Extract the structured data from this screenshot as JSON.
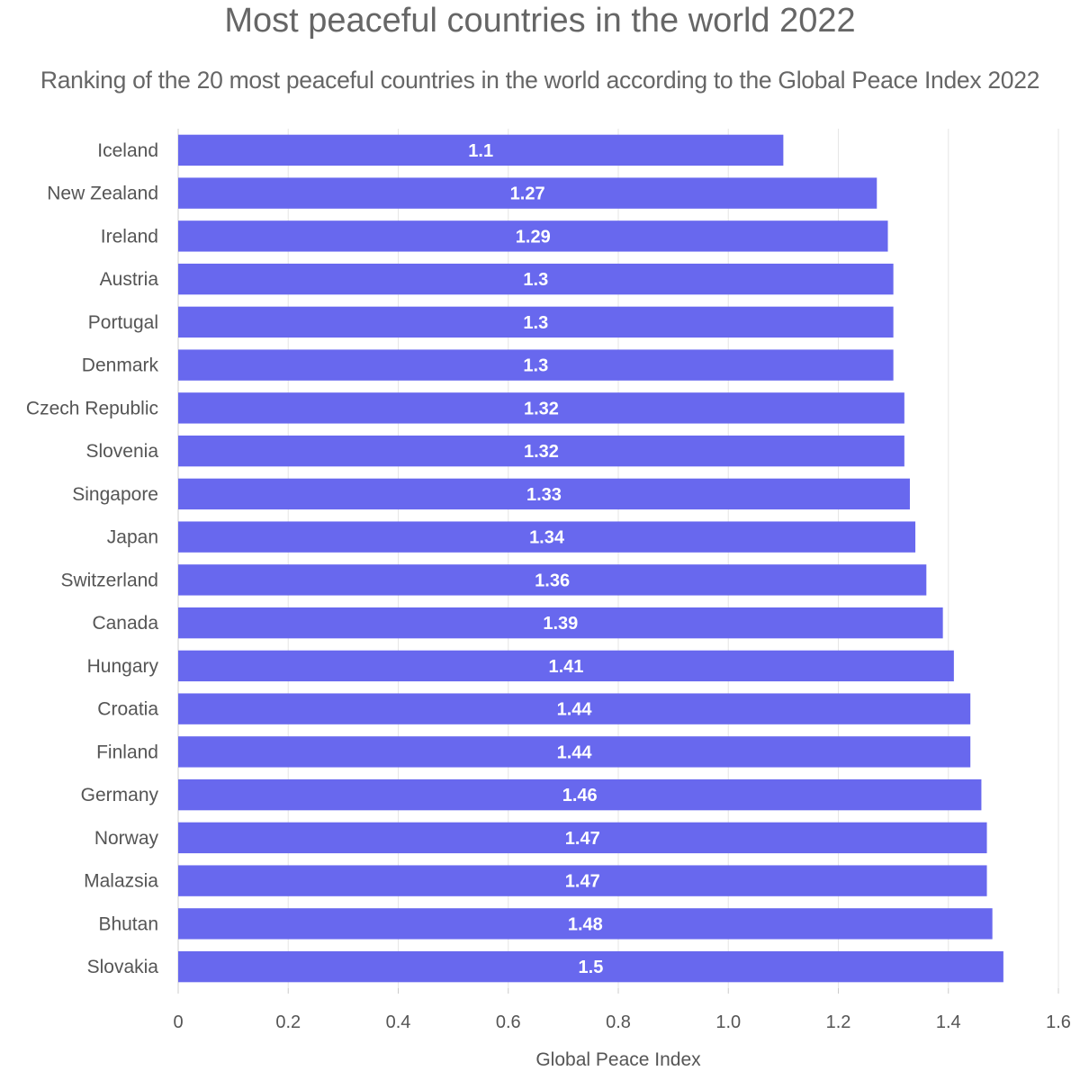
{
  "chart_data": {
    "type": "bar",
    "orientation": "horizontal",
    "title": "Most peaceful countries in the world 2022",
    "subtitle": "Ranking of the 20 most peaceful countries in the world according to the Global Peace Index 2022",
    "xlabel": "Global Peace Index",
    "ylabel": "",
    "xlim": [
      0,
      1.6
    ],
    "xticks": [
      "0",
      "0.2",
      "0.4",
      "0.6",
      "0.8",
      "1.0",
      "1.2",
      "1.4",
      "1.6"
    ],
    "grid": true,
    "bar_color": "#6868EE",
    "categories": [
      "Iceland",
      "New Zealand",
      "Ireland",
      "Austria",
      "Portugal",
      "Denmark",
      "Czech Republic",
      "Slovenia",
      "Singapore",
      "Japan",
      "Switzerland",
      "Canada",
      "Hungary",
      "Croatia",
      "Finland",
      "Germany",
      "Norway",
      "Malazsia",
      "Bhutan",
      "Slovakia"
    ],
    "values": [
      1.1,
      1.27,
      1.29,
      1.3,
      1.3,
      1.3,
      1.32,
      1.32,
      1.33,
      1.34,
      1.36,
      1.39,
      1.41,
      1.44,
      1.44,
      1.46,
      1.47,
      1.47,
      1.48,
      1.5
    ]
  }
}
